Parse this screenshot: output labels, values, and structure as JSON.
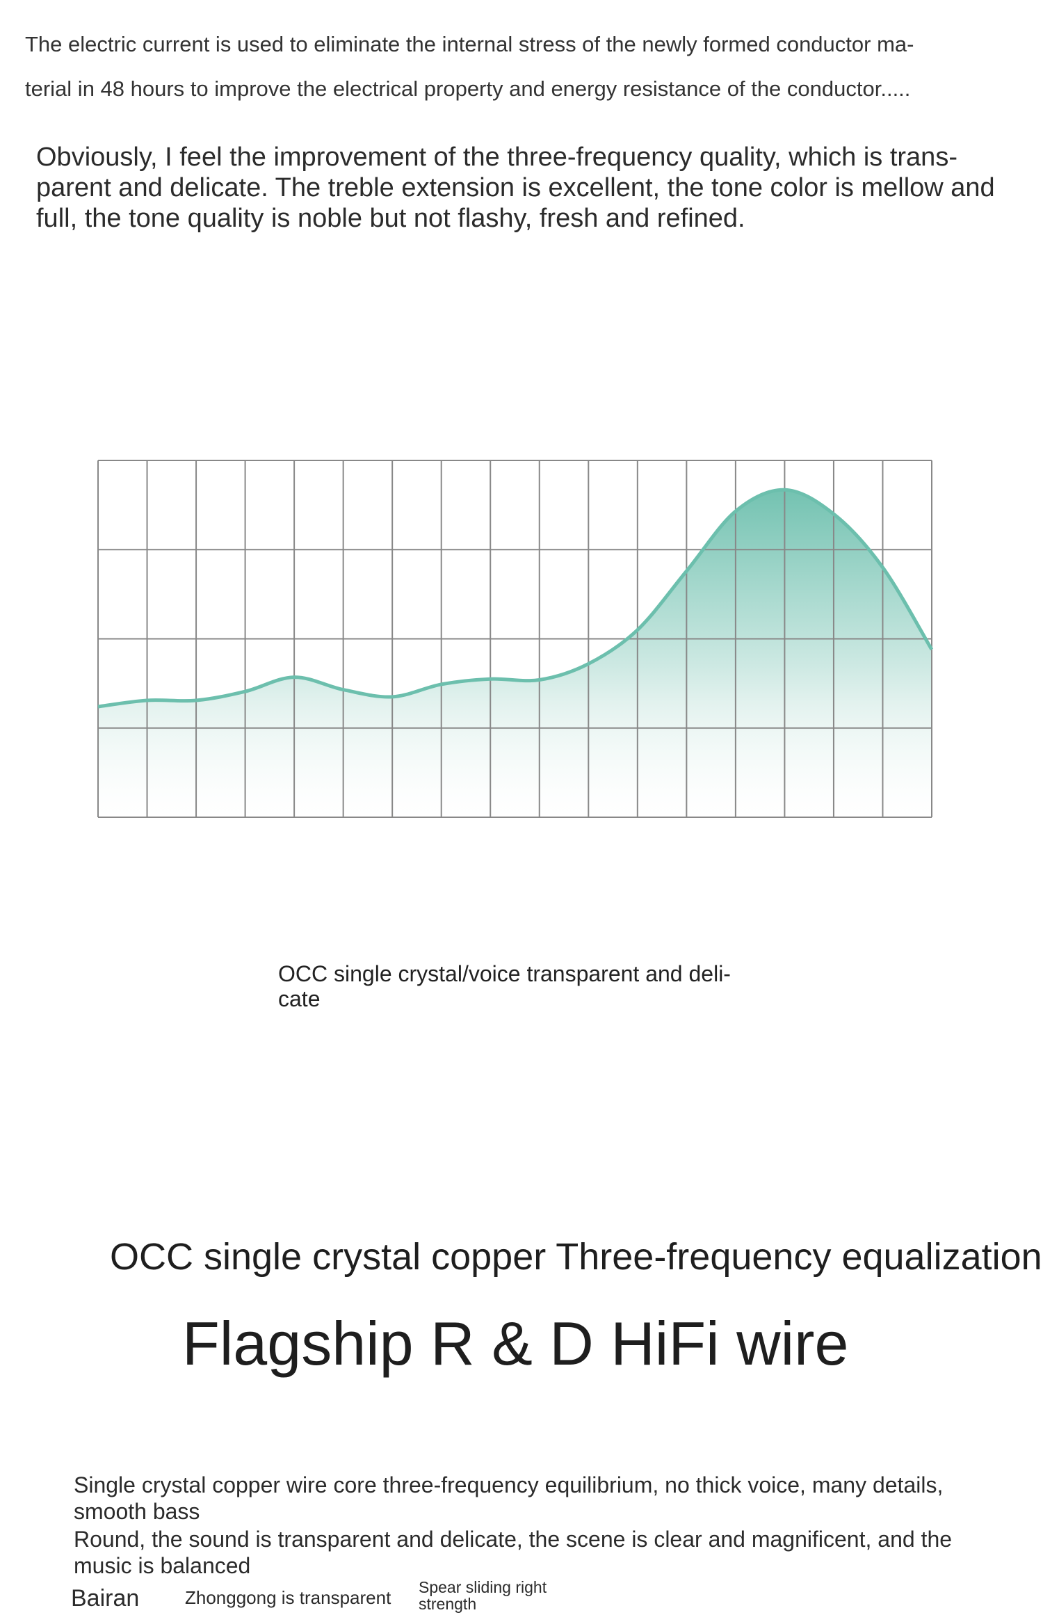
{
  "intro": {
    "line1": "The electric current is used to eliminate the internal stress of the newly formed conductor ma-",
    "line2": "terial in 48 hours to improve the electrical property and energy resistance of the conductor....."
  },
  "quality_paragraph": "Obviously, I feel the improvement of the three-frequency quality, which is trans- parent and delicate. The treble extension is excellent, the tone color is mellow and full, the tone quality is noble but not flashy, fresh and refined.",
  "chart_data": {
    "type": "area",
    "title": "",
    "xlabel": "",
    "ylabel": "",
    "grid": true,
    "grid_columns": 17,
    "grid_rows": 4,
    "xlim": [
      0,
      17
    ],
    "ylim": [
      0,
      4
    ],
    "x": [
      0,
      1,
      2,
      3,
      4,
      5,
      6,
      7,
      8,
      9,
      10,
      11,
      12,
      13,
      14,
      15,
      16,
      17
    ],
    "series": [
      {
        "values": [
          1.24,
          1.31,
          1.31,
          1.41,
          1.57,
          1.43,
          1.35,
          1.49,
          1.55,
          1.54,
          1.72,
          2.1,
          2.76,
          3.43,
          3.67,
          3.4,
          2.8,
          1.88
        ]
      }
    ],
    "colors": {
      "line": "#6cbfad",
      "fill_top": "#6cbfad",
      "grid": "#888888"
    }
  },
  "caption": "OCC single crystal/voice transparent and deli- cate",
  "headline": {
    "sub": "OCC single crystal copper Three-frequency equalization",
    "main": "Flagship R & D HiFi wire"
  },
  "description": {
    "line1": "Single crystal copper wire core three-frequency equilibrium, no thick voice, many details, smooth bass",
    "line2": "Round, the sound is transparent and delicate, the scene is clear and magnificent, and the music is balanced"
  },
  "frequency_tags": {
    "bass": "Bairan",
    "mid": "Zhonggong is transparent",
    "treble": "Spear sliding right strength"
  }
}
